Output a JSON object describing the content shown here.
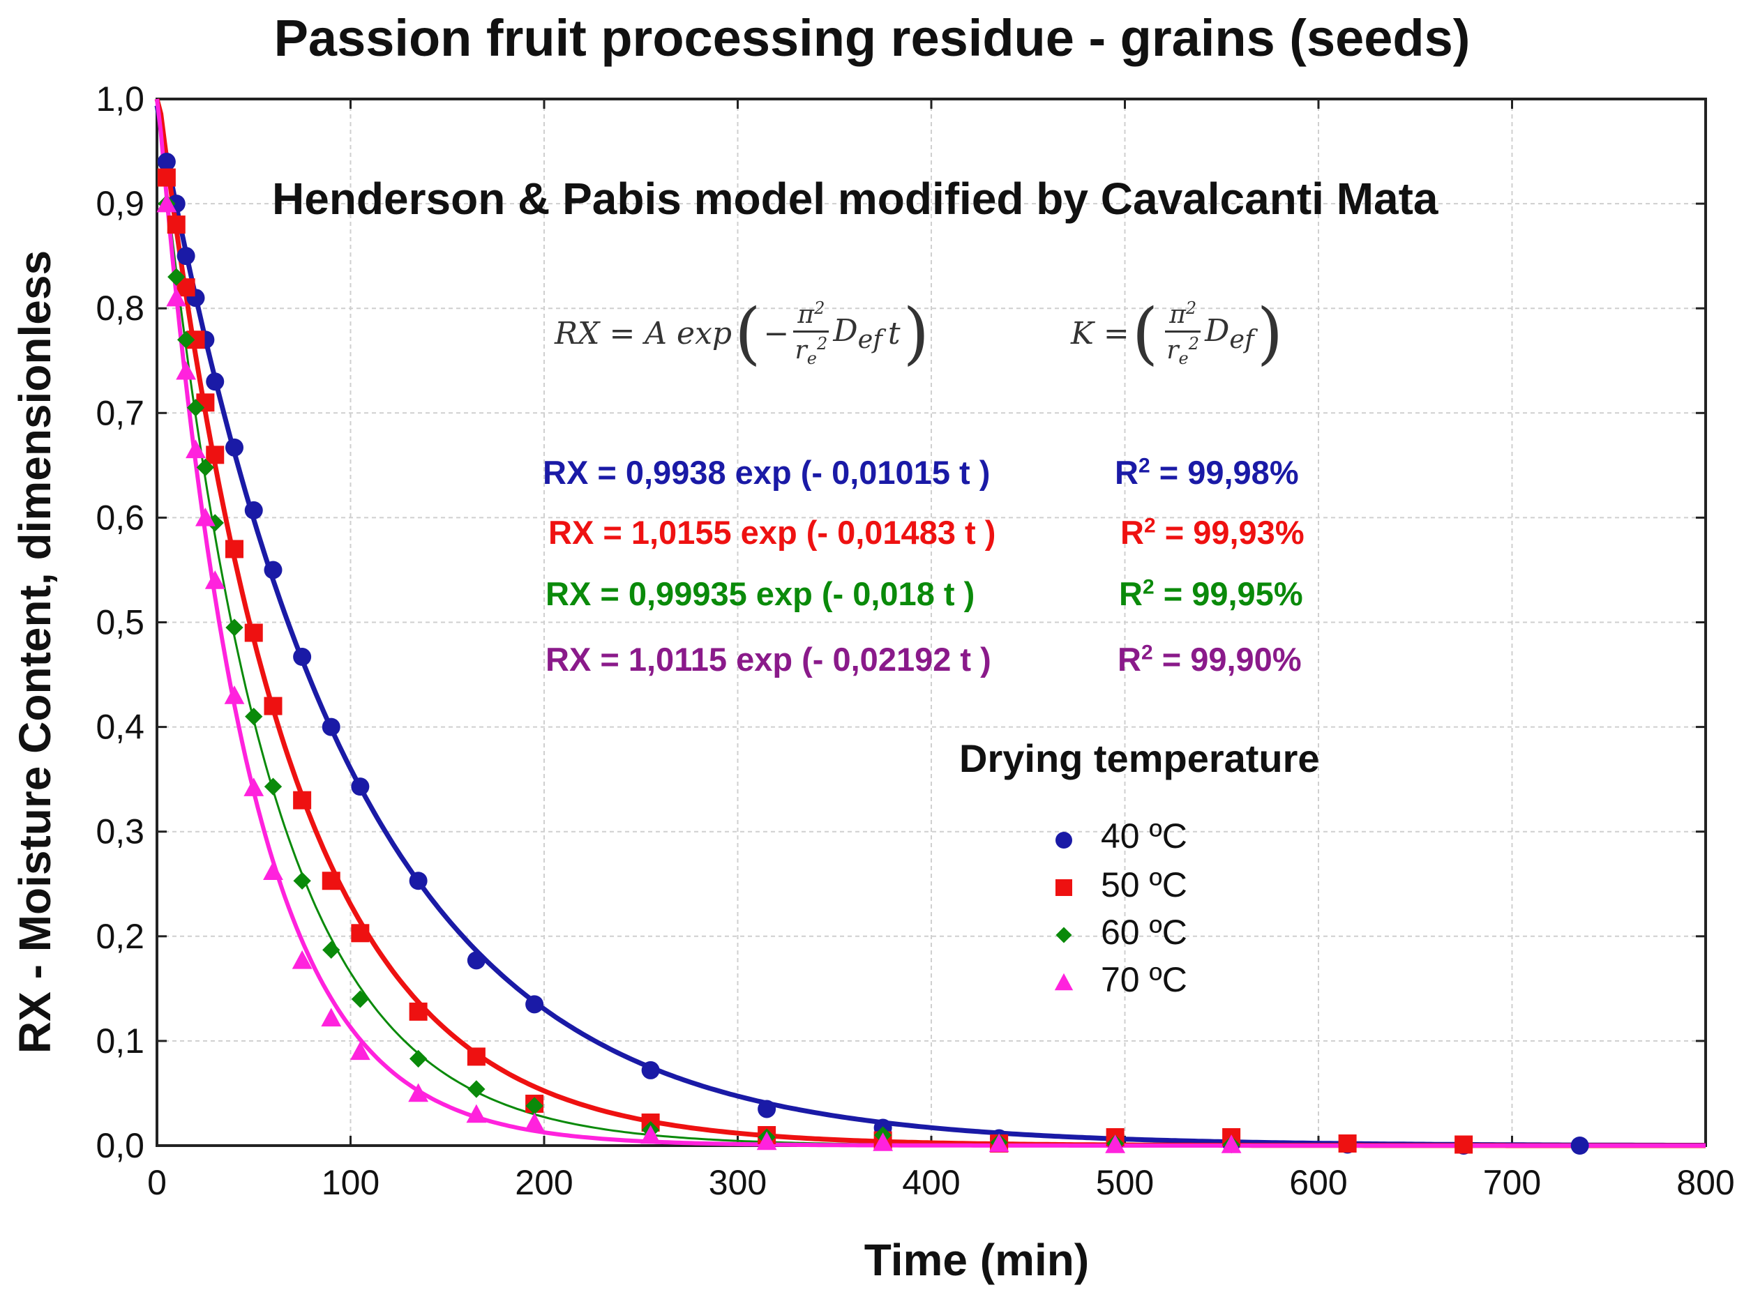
{
  "chart_data": {
    "type": "scatter",
    "title": "Passion fruit processing residue - grains (seeds)",
    "xlabel": "Time (min)",
    "ylabel": "RX - Moisture Content, dimensionless",
    "xlim": [
      0,
      800
    ],
    "ylim": [
      0,
      1.0
    ],
    "x_ticks": [
      "0",
      "100",
      "200",
      "300",
      "400",
      "500",
      "600",
      "700",
      "800"
    ],
    "y_ticks": [
      "0,0",
      "0,1",
      "0,2",
      "0,3",
      "0,4",
      "0,5",
      "0,6",
      "0,7",
      "0,8",
      "0,9",
      "1,0"
    ],
    "grid": true,
    "model_title": "Henderson & Pabis model modified by Cavalcanti Mata",
    "formula": {
      "lhs": "RX = A exp",
      "neg": "−",
      "frac_num": "π",
      "frac_num_exp": "2",
      "frac_den": "r",
      "frac_den_sub": "e",
      "frac_den_exp": "2",
      "def": "D",
      "def_sub": "ef",
      "t": "t",
      "k_lhs": "K ="
    },
    "legend_title": "Drying temperature",
    "legend_position": "center-right",
    "series": [
      {
        "name": "40 ºC",
        "temp": "40",
        "unit": "ºC",
        "color": "#1a1aa6",
        "marker": "circle",
        "A": 0.9938,
        "k": 0.01015,
        "equation": "RX = 0,9938 exp (- 0,01015 t )",
        "r2_label": "R",
        "r2_sup": "2",
        "r2_value": "= 99,98%",
        "x": [
          5,
          10,
          15,
          20,
          25,
          30,
          40,
          50,
          60,
          75,
          90,
          105,
          135,
          165,
          195,
          255,
          315,
          375,
          435,
          495,
          555,
          615,
          675,
          735
        ],
        "y": [
          0.94,
          0.9,
          0.85,
          0.81,
          0.77,
          0.73,
          0.667,
          0.607,
          0.55,
          0.467,
          0.4,
          0.343,
          0.253,
          0.177,
          0.135,
          0.072,
          0.035,
          0.017,
          0.007,
          0.004,
          0.002,
          0.001,
          0.0,
          0.0
        ]
      },
      {
        "name": "50 ºC",
        "temp": "50",
        "unit": "ºC",
        "color": "#ee1111",
        "marker": "square",
        "A": 1.0155,
        "k": 0.01483,
        "equation": "RX = 1,0155 exp (- 0,01483 t )",
        "r2_label": "R",
        "r2_sup": "2",
        "r2_value": "= 99,93%",
        "x": [
          5,
          10,
          15,
          20,
          25,
          30,
          40,
          50,
          60,
          75,
          90,
          105,
          135,
          165,
          195,
          255,
          315,
          375,
          435,
          495,
          555,
          615,
          675
        ],
        "y": [
          0.925,
          0.88,
          0.82,
          0.77,
          0.71,
          0.66,
          0.57,
          0.49,
          0.42,
          0.33,
          0.253,
          0.203,
          0.128,
          0.085,
          0.04,
          0.022,
          0.01,
          0.005,
          0.002,
          0.008,
          0.008,
          0.002,
          0.001
        ]
      },
      {
        "name": "60 ºC",
        "temp": "60",
        "unit": "ºC",
        "color": "#0a8a0a",
        "marker": "diamond",
        "A": 0.99935,
        "k": 0.018,
        "equation": "RX = 0,99935 exp (- 0,018 t )",
        "r2_label": "R",
        "r2_sup": "2",
        "r2_value": "= 99,95%",
        "x": [
          5,
          10,
          15,
          20,
          25,
          30,
          40,
          50,
          60,
          75,
          90,
          105,
          135,
          165,
          195,
          255,
          315,
          375,
          435,
          495,
          555
        ],
        "y": [
          0.9,
          0.83,
          0.77,
          0.705,
          0.648,
          0.595,
          0.495,
          0.41,
          0.343,
          0.253,
          0.187,
          0.14,
          0.083,
          0.054,
          0.038,
          0.015,
          0.008,
          0.01,
          0.003,
          0.002,
          0.001
        ]
      },
      {
        "name": "70 ºC",
        "temp": "70",
        "unit": "ºC",
        "color": "#ff22dd",
        "marker": "triangle",
        "A": 1.0115,
        "k": 0.02192,
        "equation": "RX = 1,0115 exp (- 0,02192 t )",
        "r2_label": "R",
        "r2_sup": "2",
        "r2_value": "= 99,90%",
        "x": [
          5,
          10,
          15,
          20,
          25,
          30,
          40,
          50,
          60,
          75,
          90,
          105,
          135,
          165,
          195,
          255,
          315,
          375,
          435,
          495,
          555
        ],
        "y": [
          0.9,
          0.81,
          0.74,
          0.665,
          0.6,
          0.54,
          0.43,
          0.342,
          0.262,
          0.177,
          0.122,
          0.09,
          0.05,
          0.03,
          0.022,
          0.01,
          0.004,
          0.003,
          0.002,
          0.001,
          0.001
        ]
      }
    ]
  }
}
